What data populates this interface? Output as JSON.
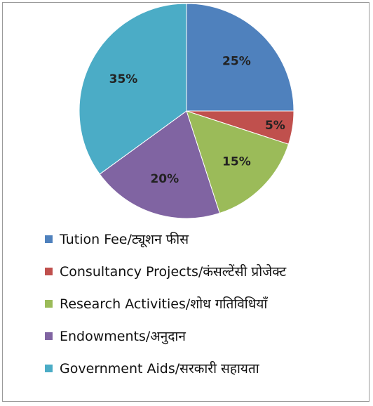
{
  "chart_data": {
    "type": "pie",
    "slices": [
      {
        "label": "Tution Fee/ट्यूशन फीस",
        "value": 25,
        "value_label": "25%",
        "color": "#4f81bd"
      },
      {
        "label": "Consultancy Projects/कंसल्टेंसी प्रोजेक्ट",
        "value": 5,
        "value_label": "5%",
        "color": "#c0504d"
      },
      {
        "label": "Research Activities/शोध गतिविधियाँ",
        "value": 15,
        "value_label": "15%",
        "color": "#9bbb59"
      },
      {
        "label": "Endowments/अनुदान",
        "value": 20,
        "value_label": "20%",
        "color": "#8064a2"
      },
      {
        "label": "Government Aids/सरकारी सहायता",
        "value": 35,
        "value_label": "35%",
        "color": "#4bacc6"
      }
    ],
    "legend_position": "bottom"
  }
}
